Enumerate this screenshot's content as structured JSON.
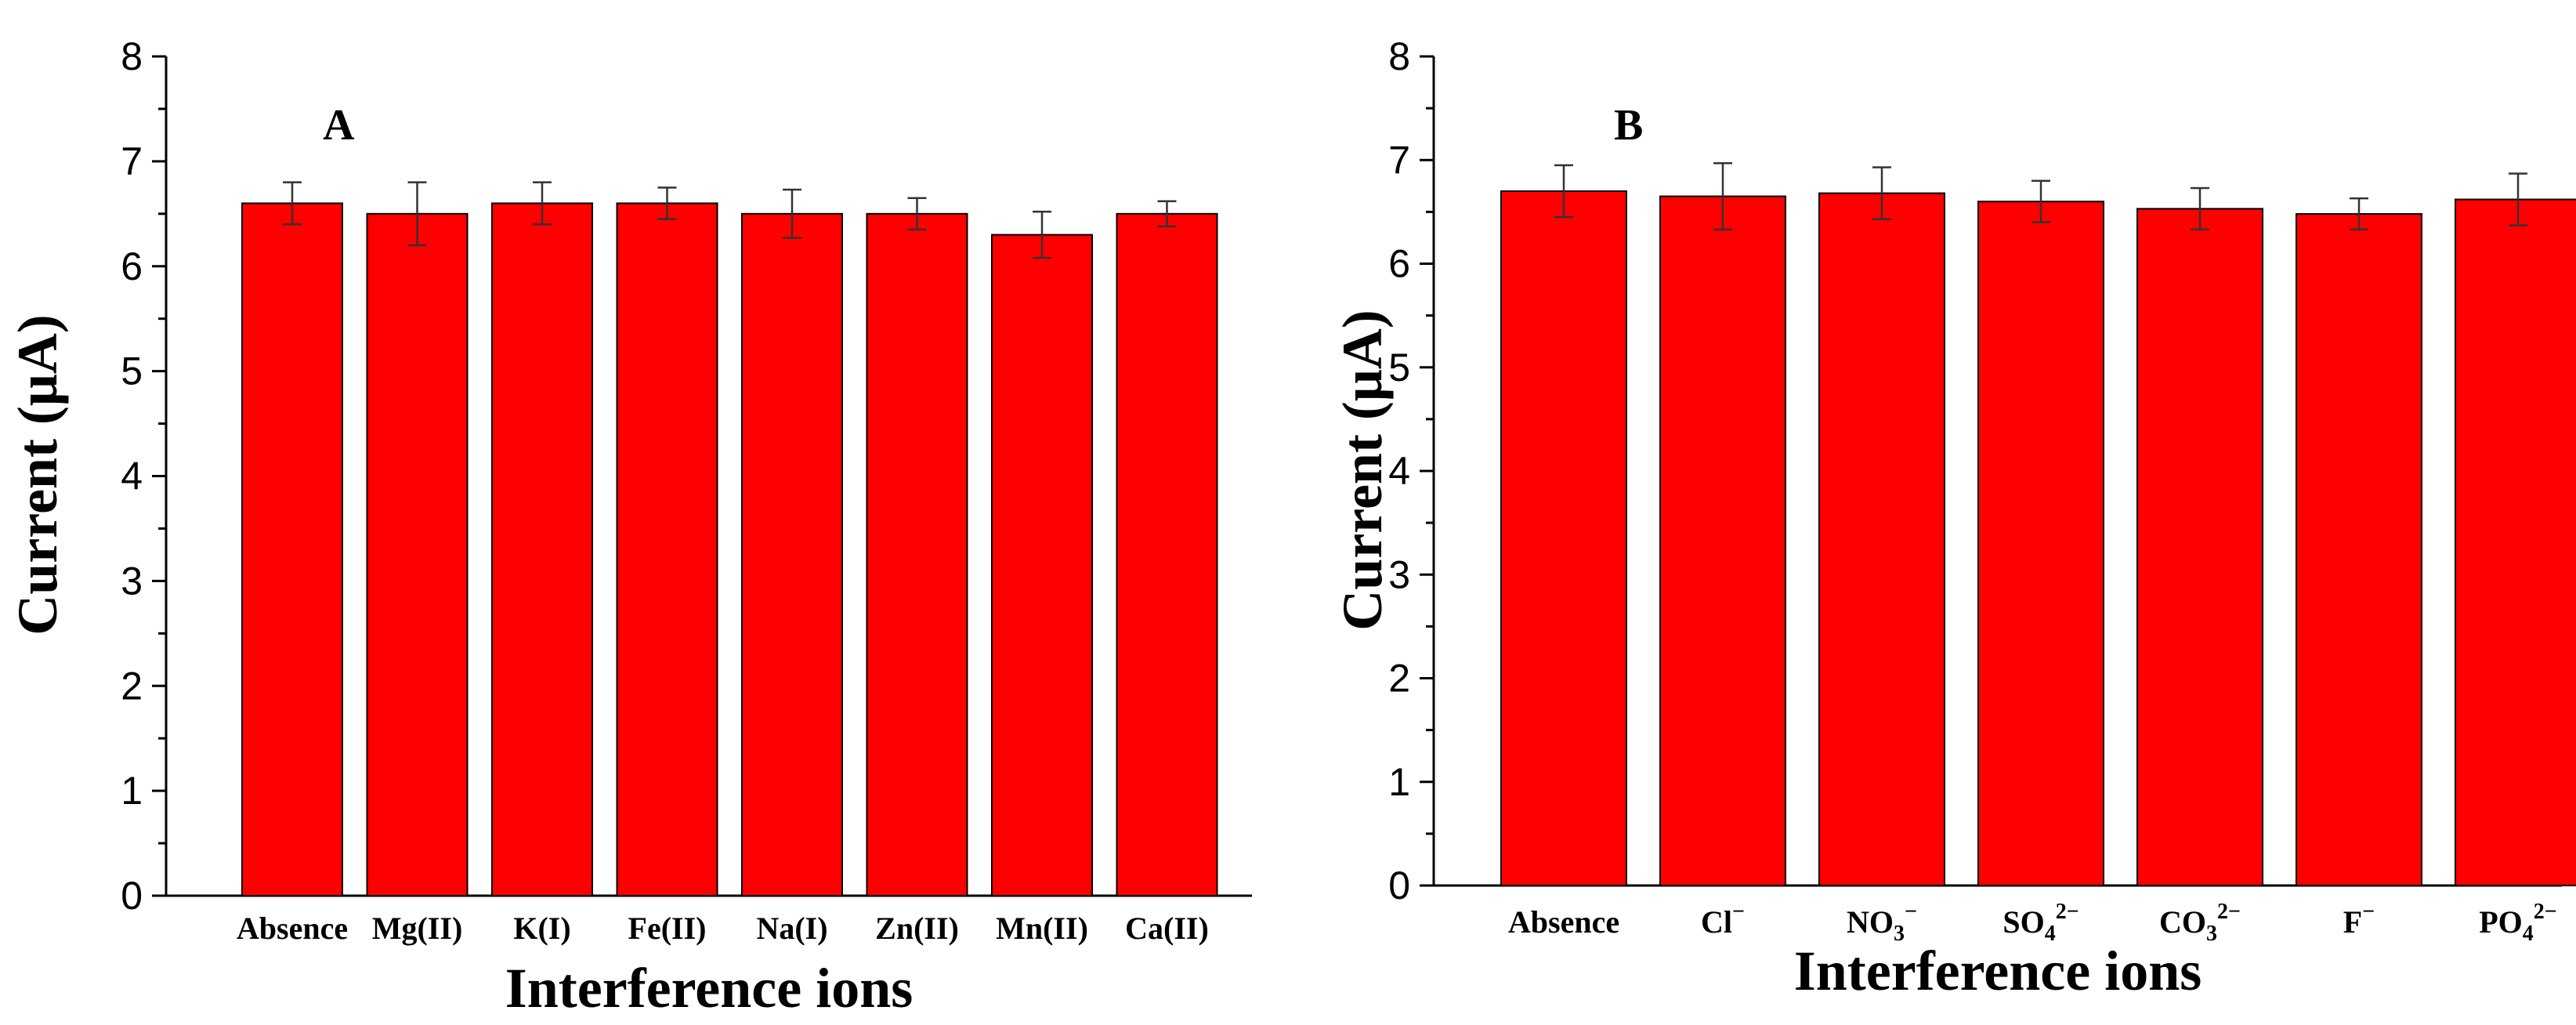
{
  "chart_data": [
    {
      "type": "bar",
      "panel_label": "A",
      "title": "",
      "xlabel": "Interference ions",
      "ylabel": "Current (μA)",
      "ylim": [
        0,
        8
      ],
      "yticks": [
        "0",
        "1",
        "2",
        "3",
        "4",
        "5",
        "6",
        "7",
        "8"
      ],
      "categories": [
        {
          "base": "Absence",
          "sub": "",
          "sup": ""
        },
        {
          "base": "Mg(II)",
          "sub": "",
          "sup": ""
        },
        {
          "base": "K(I)",
          "sub": "",
          "sup": ""
        },
        {
          "base": "Fe(II)",
          "sub": "",
          "sup": ""
        },
        {
          "base": "Na(I)",
          "sub": "",
          "sup": ""
        },
        {
          "base": "Zn(II)",
          "sub": "",
          "sup": ""
        },
        {
          "base": "Mn(II)",
          "sub": "",
          "sup": ""
        },
        {
          "base": "Ca(II)",
          "sub": "",
          "sup": ""
        }
      ],
      "values": [
        6.6,
        6.5,
        6.6,
        6.6,
        6.5,
        6.5,
        6.3,
        6.5
      ],
      "errors": [
        0.2,
        0.3,
        0.2,
        0.15,
        0.23,
        0.15,
        0.22,
        0.12
      ],
      "bar_color": "#ff0000"
    },
    {
      "type": "bar",
      "panel_label": "B",
      "title": "",
      "xlabel": "Interference ions",
      "ylabel": "Current (μA)",
      "ylim": [
        0,
        8
      ],
      "yticks": [
        "0",
        "1",
        "2",
        "3",
        "4",
        "5",
        "6",
        "7",
        "8"
      ],
      "categories": [
        {
          "base": "Absence",
          "sub": "",
          "sup": ""
        },
        {
          "base": "Cl",
          "sub": "",
          "sup": "−"
        },
        {
          "base": "NO",
          "sub": "3",
          "sup": "−"
        },
        {
          "base": "SO",
          "sub": "4",
          "sup": "2−"
        },
        {
          "base": "CO",
          "sub": "3",
          "sup": "2−"
        },
        {
          "base": "F",
          "sub": "",
          "sup": "−"
        },
        {
          "base": "PO",
          "sub": "4",
          "sup": "2−"
        }
      ],
      "values": [
        6.7,
        6.65,
        6.68,
        6.6,
        6.53,
        6.48,
        6.62
      ],
      "errors": [
        0.25,
        0.32,
        0.25,
        0.2,
        0.2,
        0.15,
        0.25
      ],
      "bar_color": "#ff0000"
    }
  ]
}
